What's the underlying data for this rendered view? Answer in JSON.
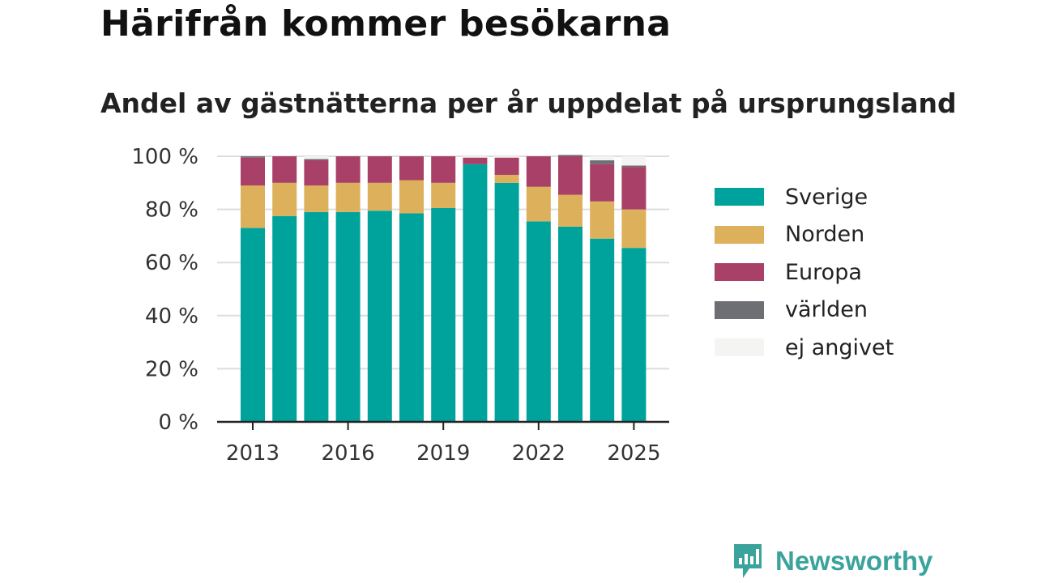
{
  "header": {
    "title": "Härifrån kommer besökarna",
    "subtitle": "Andel av gästnätterna per år uppdelat på ursprungsland"
  },
  "brand": {
    "name": "Newsworthy",
    "color": "#3aa39b"
  },
  "chart_data": {
    "type": "bar",
    "stacked": true,
    "title": "Härifrån kommer besökarna",
    "subtitle": "Andel av gästnätterna per år uppdelat på ursprungsland",
    "xlabel": "",
    "ylabel": "",
    "x": [
      2013,
      2014,
      2015,
      2016,
      2017,
      2018,
      2019,
      2020,
      2021,
      2022,
      2023,
      2024,
      2025
    ],
    "x_tick_labels": [
      "2013",
      "2016",
      "2019",
      "2022",
      "2025"
    ],
    "x_tick_values": [
      2013,
      2016,
      2019,
      2022,
      2025
    ],
    "y_tick_labels": [
      "0 %",
      "20 %",
      "40 %",
      "60 %",
      "80 %",
      "100 %"
    ],
    "y_tick_values": [
      0,
      20,
      40,
      60,
      80,
      100
    ],
    "ylim": [
      0,
      100
    ],
    "grid": true,
    "legend_position": "right",
    "series": [
      {
        "name": "Sverige",
        "color": "#00a39b",
        "values": [
          73,
          77.5,
          79,
          79,
          79.5,
          78.5,
          80.5,
          97,
          90,
          75.5,
          73.5,
          69,
          65.5
        ]
      },
      {
        "name": "Norden",
        "color": "#ddb05c",
        "values": [
          16,
          12.5,
          10,
          11,
          10.5,
          12.5,
          9.5,
          0,
          3,
          13,
          12,
          14,
          14.5
        ]
      },
      {
        "name": "Europa",
        "color": "#a84068",
        "values": [
          10.5,
          10,
          9.5,
          10,
          10,
          9,
          10,
          2.5,
          6.5,
          11.5,
          14.5,
          14,
          16
        ]
      },
      {
        "name": "världen",
        "color": "#6e6e75",
        "values": [
          0.5,
          0,
          0.5,
          0,
          0,
          0,
          0,
          0,
          0,
          0,
          0.5,
          1.5,
          0.5
        ]
      },
      {
        "name": "ej angivet",
        "color": "#f4f4f2",
        "values": [
          0,
          0,
          1,
          0,
          0,
          0,
          0,
          0.5,
          0.5,
          0,
          0,
          1.5,
          3.5
        ]
      }
    ]
  }
}
